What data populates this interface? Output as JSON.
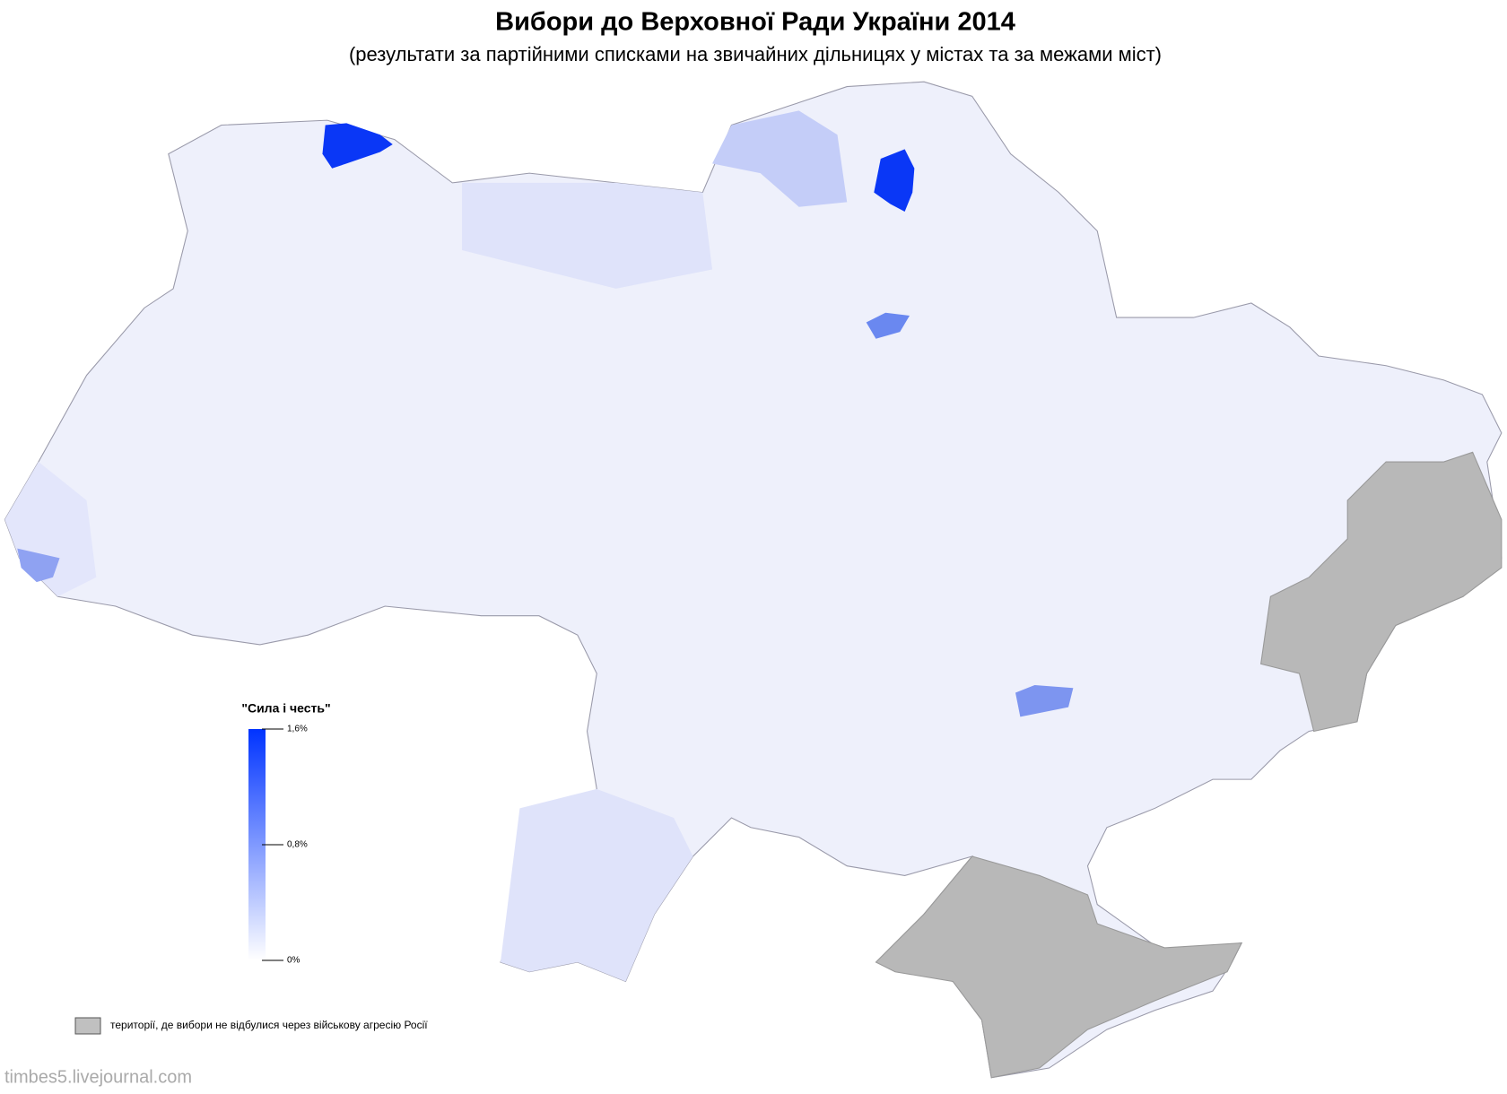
{
  "header": {
    "title": "Вибори до Верховної Ради України 2014",
    "subtitle": "(результати за партійними списками на звичайних дільницях у містах та за межами міст)"
  },
  "legend": {
    "title": "\"Сила і честь\"",
    "min_color": "#ffffff",
    "max_color": "#0033ff",
    "lim": [
      0,
      1.6
    ],
    "ticks": [
      {
        "value": 0,
        "label": "0%"
      },
      {
        "value": 0.8,
        "label": "0,8%"
      },
      {
        "value": 1.6,
        "label": "1,6%"
      }
    ]
  },
  "note": {
    "color": "#c0c0c0",
    "text": "території, де вибори не відбулися через військову агресію Росії"
  },
  "watermark": "timbes5.livejournal.com"
}
